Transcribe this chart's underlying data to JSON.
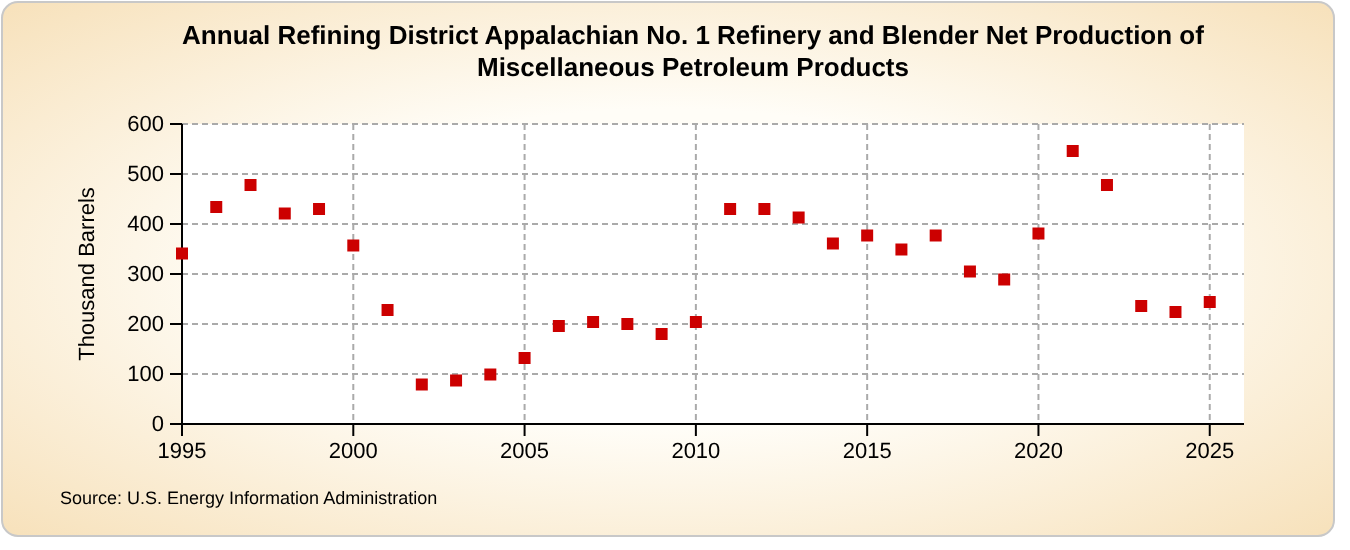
{
  "chart_data": {
    "type": "scatter",
    "title": "Annual Refining District Appalachian No. 1 Refinery and Blender Net Production of Miscellaneous Petroleum Products",
    "ylabel": "Thousand Barrels",
    "annotations": [
      "Source: U.S. Energy Information Administration"
    ],
    "x": [
      1995,
      1996,
      1997,
      1998,
      1999,
      2000,
      2001,
      2002,
      2003,
      2004,
      2005,
      2006,
      2007,
      2008,
      2009,
      2010,
      2011,
      2012,
      2013,
      2014,
      2015,
      2016,
      2017,
      2018,
      2019,
      2020,
      2021,
      2022,
      2023,
      2024,
      2025
    ],
    "series": [
      {
        "color": "#cc0000",
        "values": [
          341,
          434,
          478,
          421,
          430,
          357,
          228,
          79,
          87,
          99,
          132,
          196,
          204,
          200,
          180,
          204,
          430,
          430,
          413,
          361,
          377,
          349,
          377,
          305,
          289,
          381,
          546,
          478,
          236,
          224,
          244
        ]
      }
    ],
    "xlim": [
      1995,
      2026
    ],
    "xticks": [
      1995,
      2000,
      2005,
      2010,
      2015,
      2020,
      2025
    ],
    "ylim": [
      0,
      600
    ],
    "yticks": [
      0,
      100,
      200,
      300,
      400,
      500,
      600
    ],
    "grid": true,
    "marker": "square"
  }
}
